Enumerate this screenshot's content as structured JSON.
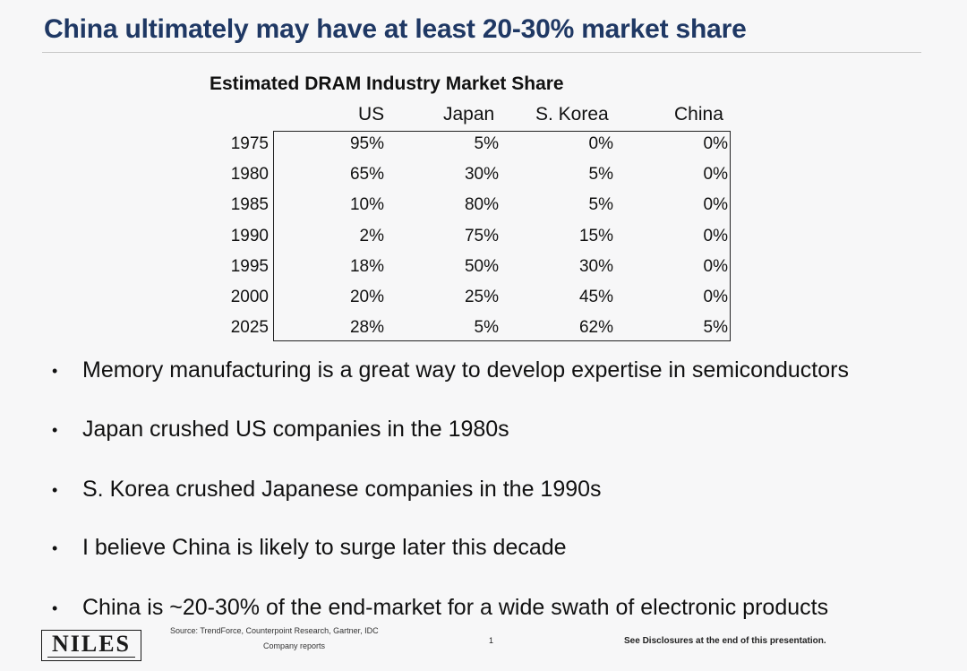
{
  "slide": {
    "title": "China ultimately may have at least 20-30% market share"
  },
  "table": {
    "caption": "Estimated DRAM Industry Market Share",
    "columns": [
      "US",
      "Japan",
      "S. Korea",
      "China"
    ],
    "rows": [
      {
        "year": "1975",
        "us": "95%",
        "japan": "5%",
        "korea": "0%",
        "china": "0%"
      },
      {
        "year": "1980",
        "us": "65%",
        "japan": "30%",
        "korea": "5%",
        "china": "0%"
      },
      {
        "year": "1985",
        "us": "10%",
        "japan": "80%",
        "korea": "5%",
        "china": "0%"
      },
      {
        "year": "1990",
        "us": "2%",
        "japan": "75%",
        "korea": "15%",
        "china": "0%"
      },
      {
        "year": "1995",
        "us": "18%",
        "japan": "50%",
        "korea": "30%",
        "china": "0%"
      },
      {
        "year": "2000",
        "us": "20%",
        "japan": "25%",
        "korea": "45%",
        "china": "0%"
      },
      {
        "year": "2025",
        "us": "28%",
        "japan": "5%",
        "korea": "62%",
        "china": "5%"
      }
    ]
  },
  "bullets": [
    "Memory manufacturing is a great way to develop expertise in semiconductors",
    "Japan crushed US companies in the 1980s",
    "S. Korea crushed Japanese companies in the 1990s",
    "I believe China is likely to surge later this decade",
    "China is ~20-30% of the end-market for a wide swath of electronic products"
  ],
  "bullet_symbol": "•",
  "footer": {
    "logo": "NILES",
    "source_line1": "Source: TrendForce, Counterpoint Research, Gartner, IDC",
    "source_line2": "Company reports",
    "page_number": "1",
    "disclosure": "See Disclosures at the end of this presentation."
  }
}
